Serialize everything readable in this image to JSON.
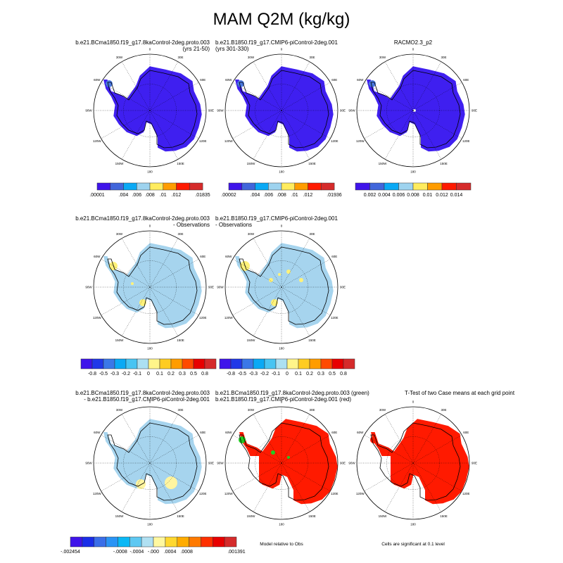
{
  "title": "MAM Q2M (kg/kg)",
  "map_labels": [
    "0",
    "30E",
    "60E",
    "90E",
    "120E",
    "150E",
    "180",
    "150W",
    "120W",
    "90W",
    "60W",
    "30W"
  ],
  "panels": [
    {
      "id": "case1",
      "title": [
        "b.e21.BCma1850.f19_g17.8kaControl-2deg.proto.003",
        "(yrs 21-50)"
      ],
      "fill": "#3f1ff0",
      "spots": [
        [
          "#4a78e0",
          -58,
          -38,
          5
        ]
      ]
    },
    {
      "id": "case2",
      "title": [
        "b.e21.B1850.f19_g17.CMIP6-piControl-2deg.001",
        "(yrs 301-330)"
      ],
      "fill": "#3f1ff0",
      "spots": [
        [
          "#4a78e0",
          -58,
          -38,
          5
        ]
      ]
    },
    {
      "id": "obs",
      "title": [
        "RACMO2.3_p2"
      ],
      "fill": "#3f1ff0",
      "spots": [
        [
          "#4a78e0",
          -58,
          -38,
          5
        ],
        [
          "#ffffff",
          2,
          0,
          2
        ]
      ]
    },
    {
      "id": "diff1",
      "title": [
        "b.e21.BCma1850.f19_g17.8kaControl-2deg.proto.003",
        "- Observations"
      ],
      "fill": "#a6d4ee",
      "spots": [
        [
          "#fff27a",
          -52,
          -30,
          6
        ],
        [
          "#fff27a",
          -10,
          22,
          5
        ],
        [
          "#fff27a",
          -25,
          -5,
          2
        ]
      ]
    },
    {
      "id": "diff2",
      "title": [
        "b.e21.B1850.f19_g17.CMIP6-piControl-2deg.001",
        "- Observations"
      ],
      "fill": "#a6d4ee",
      "spots": [
        [
          "#fff27a",
          -52,
          -30,
          7
        ],
        [
          "#fff27a",
          -10,
          22,
          5
        ],
        [
          "#fff27a",
          -15,
          -10,
          3
        ],
        [
          "#fff27a",
          10,
          -22,
          3
        ],
        [
          "#fff27a",
          28,
          -10,
          3
        ],
        [
          "#fff27a",
          -3,
          -18,
          2
        ]
      ]
    },
    {
      "id": "casediff",
      "title": [
        "b.e21.BCma1850.f19_g17.8kaControl-2deg.proto.003",
        "- b.e21.B1850.f19_g17.CMIP6-piControl-2deg.001"
      ],
      "fill": "#a6d4ee",
      "spots": [
        [
          "#fff5a0",
          -13,
          30,
          7
        ],
        [
          "#fff5a0",
          30,
          28,
          9
        ]
      ]
    },
    {
      "id": "relobs",
      "title": [
        "b.e21.BCma1850.f19_g17.8kaControl-2deg.proto.003 (green)",
        "b.e21.B1850.f19_g17.CMIP6-piControl-2deg.001 (red)"
      ],
      "fill": "#ff1a00",
      "partial": true,
      "spots": [
        [
          "#22cc22",
          -56,
          -33,
          5
        ],
        [
          "#22cc22",
          -12,
          -15,
          3
        ],
        [
          "#22cc22",
          10,
          -8,
          2
        ]
      ]
    },
    {
      "id": "ttest",
      "title": [
        "T-Test of two Case means at each grid point"
      ],
      "fill": "#ff1a00",
      "partial": true,
      "spots": [
        [
          "#ff1a00",
          -56,
          -33,
          5
        ]
      ]
    }
  ],
  "colorbars": [
    {
      "colors": [
        "#3f14ea",
        "#4166db",
        "#0aa9f5",
        "#9ed3ef",
        "#ffec5e",
        "#ff9c00",
        "#ff1a00",
        "#d52b2b"
      ],
      "labels": [
        ".00001",
        "",
        ".004",
        ".006",
        ".008",
        ".01",
        ".012",
        "",
        ".01835"
      ]
    },
    {
      "colors": [
        "#3f14ea",
        "#4166db",
        "#0aa9f5",
        "#9ed3ef",
        "#ffec5e",
        "#ff9c00",
        "#ff1a00",
        "#d52b2b"
      ],
      "labels": [
        ".00002",
        "",
        ".004",
        ".006",
        ".008",
        ".01",
        ".012",
        "",
        ".01936"
      ]
    },
    {
      "colors": [
        "#3f14ea",
        "#4166db",
        "#0aa9f5",
        "#9ed3ef",
        "#ffec5e",
        "#ff9c00",
        "#ff1a00",
        "#d52b2b"
      ],
      "labels": [
        "",
        "0.002",
        "0.004",
        "0.006",
        "0.008",
        "0.01",
        "0.012",
        "0.014",
        ""
      ]
    },
    {
      "colors": [
        "#3f14ea",
        "#2038e8",
        "#3a78e8",
        "#0aa9f5",
        "#48c4f2",
        "#ace0f2",
        "#fff58a",
        "#ffcc22",
        "#ff9c00",
        "#ff4a00",
        "#e80000",
        "#d52b2b"
      ],
      "labels": [
        "",
        "-0.8",
        "-0.5",
        "-0.3",
        "-0.2",
        "-0.1",
        "0",
        "0.1",
        "0.2",
        "0.3",
        "0.5",
        "0.8",
        ""
      ]
    },
    {
      "colors": [
        "#3f14ea",
        "#2038e8",
        "#3a78e8",
        "#0aa9f5",
        "#48c4f2",
        "#ace0f2",
        "#fff58a",
        "#ffcc22",
        "#ff9c00",
        "#ff4a00",
        "#e80000",
        "#d52b2b"
      ],
      "labels": [
        "",
        "-0.8",
        "-0.5",
        "-0.3",
        "-0.2",
        "-0.1",
        "0",
        "0.1",
        "0.2",
        "0.3",
        "0.5",
        "0.8",
        ""
      ]
    },
    {
      "colors": [
        "#3f14ea",
        "#1a2ee8",
        "#3a6ee8",
        "#2a94f5",
        "#0ab8f5",
        "#5ec8f2",
        "#b0e0f2",
        "#fff8a0",
        "#ffd830",
        "#ffac00",
        "#ff7a00",
        "#ff3000",
        "#e80000",
        "#d52b2b"
      ],
      "labels": [
        "-.002454",
        "",
        "",
        "-.0008",
        "-.0004",
        "-.000",
        ".0004",
        ".0008",
        "",
        "",
        ".001391"
      ]
    }
  ],
  "notes": [
    "Model relative to Obs",
    "Cells are significant at 0.1 level"
  ]
}
